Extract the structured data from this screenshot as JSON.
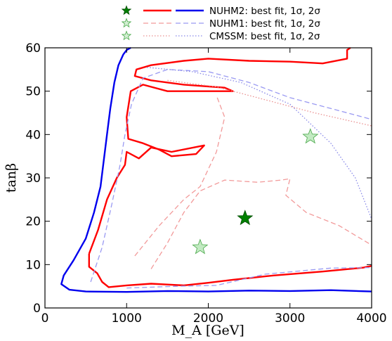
{
  "chart_data": {
    "type": "line",
    "title": "",
    "xlabel": "M_A [GeV]",
    "ylabel": "tanβ",
    "xlim": [
      0,
      4000
    ],
    "ylim": [
      0,
      60
    ],
    "x_ticks": [
      "0",
      "1000",
      "2000",
      "3000",
      "4000"
    ],
    "y_ticks": [
      "0",
      "10",
      "20",
      "30",
      "40",
      "50",
      "60"
    ],
    "grid": false,
    "legend_placement": "top-center, outside plot",
    "legend": [
      {
        "label": "NUHM2: best fit, 1σ, 2σ",
        "color": "#0000ee",
        "style": "solid"
      },
      {
        "label": "NUHM1: best fit, 1σ, 2σ",
        "color": "#9a9af2",
        "style": "dashed"
      },
      {
        "label": "CMSSM: best fit, 1σ, 2σ",
        "color": "#8888e8",
        "style": "dotted"
      }
    ],
    "series": [
      {
        "model": "NUHM2",
        "kind": "best-fit",
        "color": "#008000",
        "points": [
          [
            2450,
            20.7
          ]
        ]
      },
      {
        "model": "NUHM1",
        "kind": "best-fit",
        "color": "#90d890",
        "points": [
          [
            1900,
            14
          ]
        ]
      },
      {
        "model": "CMSSM",
        "kind": "best-fit",
        "color": "#90d890",
        "points": [
          [
            3250,
            39.5
          ]
        ]
      },
      {
        "model": "NUHM2",
        "kind": "2σ",
        "color": "#0000ee",
        "style": "solid",
        "points": [
          [
            4000,
            3.8
          ],
          [
            3500,
            4.1
          ],
          [
            3000,
            3.9
          ],
          [
            2500,
            4.0
          ],
          [
            2000,
            3.8
          ],
          [
            1500,
            3.9
          ],
          [
            1000,
            3.7
          ],
          [
            500,
            3.8
          ],
          [
            300,
            4.2
          ],
          [
            200,
            5.5
          ],
          [
            230,
            7.5
          ],
          [
            350,
            11
          ],
          [
            500,
            16
          ],
          [
            600,
            22
          ],
          [
            680,
            28
          ],
          [
            720,
            34
          ],
          [
            760,
            40
          ],
          [
            800,
            46
          ],
          [
            850,
            52
          ],
          [
            900,
            56
          ],
          [
            960,
            58.5
          ],
          [
            1000,
            59.5
          ],
          [
            1050,
            60
          ]
        ]
      },
      {
        "model": "NUHM2",
        "kind": "1σ",
        "color": "#ff0000",
        "style": "solid",
        "points": [
          [
            540,
            12.5
          ],
          [
            540,
            9.5
          ],
          [
            640,
            8
          ],
          [
            700,
            6
          ],
          [
            780,
            4.8
          ],
          [
            1000,
            5.2
          ],
          [
            1300,
            5.6
          ],
          [
            1700,
            5.2
          ],
          [
            2000,
            5.8
          ],
          [
            2300,
            6.5
          ],
          [
            2800,
            7.5
          ],
          [
            3400,
            8.4
          ],
          [
            3900,
            9.3
          ],
          [
            4000,
            9.7
          ]
        ]
      },
      {
        "model": "NUHM2",
        "kind": "1σ",
        "color": "#ff0000",
        "style": "solid",
        "points": [
          [
            540,
            12.5
          ],
          [
            650,
            18
          ],
          [
            760,
            25
          ],
          [
            880,
            30
          ],
          [
            980,
            33
          ],
          [
            1000,
            36
          ],
          [
            1150,
            34.5
          ],
          [
            1300,
            37
          ],
          [
            1550,
            36
          ],
          [
            1950,
            37.5
          ],
          [
            1850,
            35.5
          ],
          [
            1550,
            35
          ],
          [
            1400,
            36.5
          ],
          [
            1200,
            38
          ],
          [
            1020,
            39
          ],
          [
            1000,
            44
          ],
          [
            1050,
            50
          ],
          [
            1200,
            51.5
          ],
          [
            1500,
            50
          ],
          [
            2300,
            50
          ],
          [
            2200,
            50.8
          ],
          [
            1700,
            51.5
          ],
          [
            1300,
            52.5
          ],
          [
            1100,
            53.5
          ],
          [
            1120,
            55
          ],
          [
            1300,
            56
          ],
          [
            1700,
            57
          ],
          [
            2000,
            57.5
          ],
          [
            2500,
            57
          ],
          [
            3000,
            56.8
          ],
          [
            3400,
            56.4
          ],
          [
            3700,
            57.5
          ],
          [
            3700,
            59.5
          ],
          [
            3740,
            60
          ]
        ]
      },
      {
        "model": "NUHM1",
        "kind": "2σ",
        "color": "#9a9af2",
        "style": "dashed",
        "points": [
          [
            560,
            6
          ],
          [
            700,
            14
          ],
          [
            820,
            24
          ],
          [
            920,
            33
          ],
          [
            980,
            40
          ],
          [
            1060,
            47
          ],
          [
            1200,
            53
          ],
          [
            1500,
            55
          ],
          [
            2000,
            54.5
          ],
          [
            2500,
            52
          ],
          [
            3000,
            48.5
          ],
          [
            3500,
            46
          ],
          [
            4000,
            43.5
          ]
        ]
      },
      {
        "model": "NUHM1",
        "kind": "2σ",
        "color": "#9a9af2",
        "style": "dashed",
        "points": [
          [
            1000,
            4.6
          ],
          [
            1600,
            5
          ],
          [
            2100,
            5.2
          ],
          [
            2400,
            6.5
          ],
          [
            2700,
            7.8
          ],
          [
            3100,
            8.5
          ],
          [
            3500,
            9.2
          ],
          [
            4000,
            9.3
          ]
        ]
      },
      {
        "model": "NUHM1",
        "kind": "1σ",
        "color": "#f29a9a",
        "style": "dashed",
        "points": [
          [
            1300,
            9
          ],
          [
            1500,
            15
          ],
          [
            1700,
            22
          ],
          [
            1900,
            27
          ],
          [
            2200,
            29.5
          ],
          [
            2600,
            29
          ],
          [
            2900,
            29.5
          ],
          [
            3000,
            29.8
          ],
          [
            2950,
            26
          ],
          [
            3200,
            22
          ],
          [
            3600,
            19
          ],
          [
            4000,
            14.5
          ]
        ]
      },
      {
        "model": "NUHM1",
        "kind": "1σ",
        "color": "#f29a9a",
        "style": "dashed",
        "points": [
          [
            1100,
            12
          ],
          [
            1400,
            19
          ],
          [
            1700,
            25
          ],
          [
            1900,
            28
          ],
          [
            2100,
            36
          ],
          [
            2200,
            44
          ],
          [
            2100,
            49
          ]
        ]
      },
      {
        "model": "CMSSM",
        "kind": "2σ",
        "color": "#8888e8",
        "style": "dotted",
        "points": [
          [
            1250,
            55.5
          ],
          [
            1800,
            54.5
          ],
          [
            2400,
            52
          ],
          [
            3000,
            47
          ],
          [
            3500,
            38
          ],
          [
            3800,
            30
          ],
          [
            4000,
            20.5
          ]
        ]
      },
      {
        "model": "CMSSM",
        "kind": "1σ",
        "color": "#ea9090",
        "style": "dotted",
        "points": [
          [
            1500,
            52.5
          ],
          [
            2100,
            51
          ],
          [
            2700,
            48
          ],
          [
            3300,
            45
          ],
          [
            4000,
            42
          ]
        ]
      }
    ]
  }
}
